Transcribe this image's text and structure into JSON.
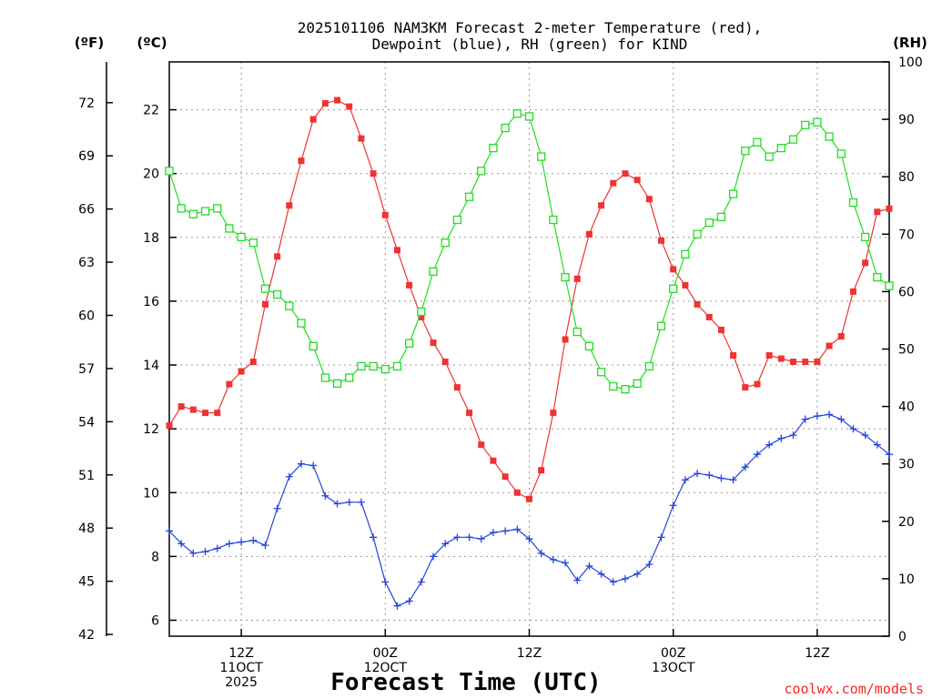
{
  "title_lines": [
    "2025101106 NAM3KM Forecast 2-meter Temperature (red),",
    "Dewpoint (blue), RH (green) for KIND"
  ],
  "credit": "coolwx.com/models",
  "chart_data": {
    "type": "line",
    "title": "2025101106 NAM3KM Forecast 2-meter Temperature (red), Dewpoint (blue), RH (green) for KIND",
    "xlabel": "Forecast Time (UTC)",
    "x_range_hours": [
      0,
      60
    ],
    "x_ticks": [
      {
        "hour": 6,
        "lines": [
          "12Z",
          "11OCT",
          "2025"
        ]
      },
      {
        "hour": 18,
        "lines": [
          "00Z",
          "12OCT"
        ]
      },
      {
        "hour": 30,
        "lines": [
          "12Z"
        ]
      },
      {
        "hour": 42,
        "lines": [
          "00Z",
          "13OCT"
        ]
      },
      {
        "hour": 54,
        "lines": [
          "12Z"
        ]
      }
    ],
    "axes": {
      "celsius": {
        "label": "(ºC)",
        "range": [
          5.5,
          23.5
        ],
        "ticks": [
          6,
          8,
          10,
          12,
          14,
          16,
          18,
          20,
          22
        ]
      },
      "fahrenheit": {
        "label": "(ºF)",
        "ticks": [
          42,
          45,
          48,
          51,
          54,
          57,
          60,
          63,
          66,
          69,
          72
        ]
      },
      "rh": {
        "label": "(RH)",
        "range": [
          0,
          100
        ],
        "ticks": [
          0,
          10,
          20,
          30,
          40,
          50,
          60,
          70,
          80,
          90,
          100
        ]
      }
    },
    "series": [
      {
        "name": "2-meter Temperature",
        "units": "°C",
        "color": "#ee3333",
        "marker": "filled-square",
        "values": [
          12.1,
          12.7,
          12.6,
          12.5,
          12.5,
          13.4,
          13.8,
          14.1,
          15.9,
          17.4,
          19.0,
          20.4,
          21.7,
          22.2,
          22.3,
          22.1,
          21.1,
          20.0,
          18.7,
          17.6,
          16.5,
          15.5,
          14.7,
          14.1,
          13.3,
          12.5,
          11.5,
          11.0,
          10.5,
          10.0,
          9.8,
          10.7,
          12.5,
          14.8,
          16.7,
          18.1,
          19.0,
          19.7,
          20.0,
          19.8,
          19.2,
          17.9,
          17.0,
          16.5,
          15.9,
          15.5,
          15.1,
          14.3,
          13.3,
          13.4,
          14.3,
          14.2,
          14.1,
          14.1,
          14.1,
          14.6,
          14.9,
          16.3,
          17.2,
          18.8,
          18.9
        ]
      },
      {
        "name": "Dewpoint",
        "units": "°C",
        "color": "#2244dd",
        "marker": "plus",
        "values": [
          8.8,
          8.4,
          8.1,
          8.15,
          8.25,
          8.4,
          8.45,
          8.5,
          8.35,
          9.5,
          10.5,
          10.9,
          10.85,
          9.9,
          9.65,
          9.7,
          9.7,
          8.6,
          7.2,
          6.45,
          6.6,
          7.2,
          8.0,
          8.4,
          8.6,
          8.6,
          8.55,
          8.75,
          8.8,
          8.85,
          8.55,
          8.1,
          7.9,
          7.8,
          7.25,
          7.7,
          7.45,
          7.2,
          7.3,
          7.45,
          7.75,
          8.6,
          9.6,
          10.4,
          10.6,
          10.55,
          10.45,
          10.4,
          10.8,
          11.2,
          11.5,
          11.7,
          11.8,
          12.3,
          12.4,
          12.45,
          12.3,
          12.0,
          11.8,
          11.5,
          11.2
        ]
      },
      {
        "name": "RH",
        "units": "%",
        "color": "#22dd22",
        "marker": "open-square",
        "values": [
          81,
          74.5,
          73.5,
          74,
          74.5,
          71,
          69.5,
          68.5,
          60.5,
          59.5,
          57.5,
          54.5,
          50.5,
          45,
          44,
          45,
          47,
          47,
          46.5,
          47,
          51,
          56.5,
          63.5,
          68.5,
          72.5,
          76.5,
          81,
          85,
          88.5,
          91,
          90.5,
          83.5,
          72.5,
          62.5,
          53,
          50.5,
          46,
          43.5,
          43,
          44,
          47,
          54,
          60.5,
          66.5,
          70,
          72,
          73,
          77,
          84.5,
          86,
          83.5,
          85,
          86.5,
          89,
          89.5,
          87,
          84,
          75.5,
          69.5,
          62.5,
          61
        ]
      }
    ]
  }
}
